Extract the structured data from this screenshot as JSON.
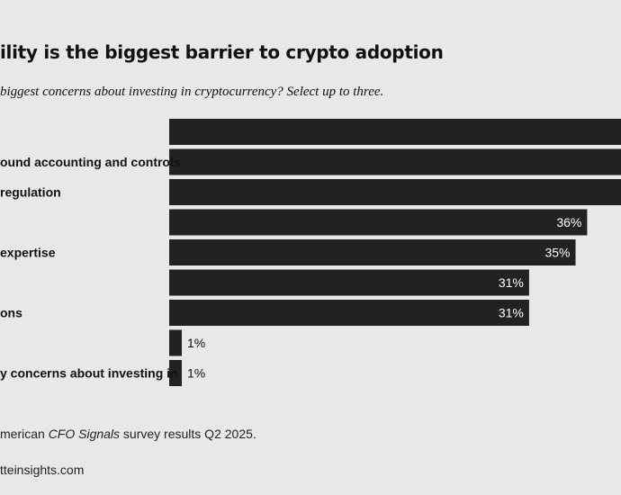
{
  "header": {
    "title": "ility is the biggest barrier to crypto adoption",
    "subtitle": "biggest concerns about investing in cryptocurrency? Select up to three."
  },
  "chart_data": {
    "type": "bar",
    "orientation": "horizontal",
    "categories": [
      "",
      "ound accounting and controls",
      "regulation",
      "",
      "expertise",
      "",
      "ons",
      "",
      "y concerns about investing in"
    ],
    "values": [
      null,
      null,
      null,
      36,
      35,
      31,
      31,
      1,
      1
    ],
    "value_labels": [
      "",
      "",
      "",
      "36%",
      "35%",
      "31%",
      "31%",
      "1%",
      "1%"
    ],
    "bar_color": "#222222",
    "grid": false,
    "legend": "none"
  },
  "footer": {
    "source_prefix": "merican ",
    "source_emph": "CFO Signals",
    "source_suffix": " survey results Q2 2025.",
    "website": "tteinsights.com"
  },
  "colors": {
    "background": "#e8e9e6",
    "bar": "#222222",
    "label_on_bar": "#ffffff",
    "label_off_bar": "#111111"
  }
}
